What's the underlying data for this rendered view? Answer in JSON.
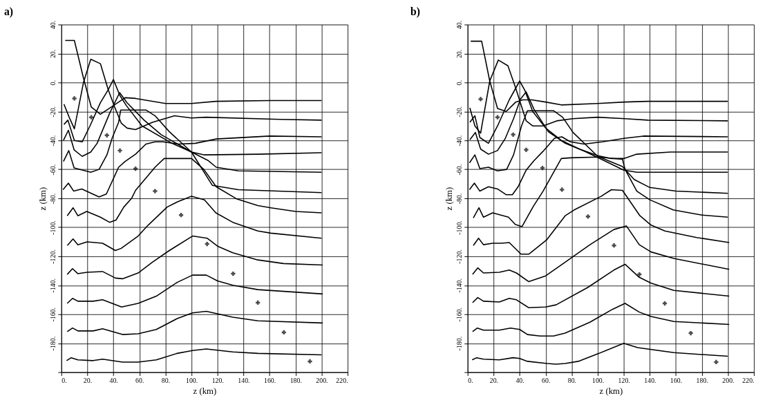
{
  "chart_data": [
    {
      "type": "line",
      "title": "a)",
      "xlabel": "z (km)",
      "ylabel": "z (km)",
      "xlim": [
        0,
        220
      ],
      "ylim": [
        -200,
        40
      ],
      "grid": true,
      "line_style": "solid",
      "xticks": [
        {
          "value": 0,
          "label": "0."
        },
        {
          "value": 20,
          "label": "20."
        },
        {
          "value": 40,
          "label": "40."
        },
        {
          "value": 60,
          "label": "60."
        },
        {
          "value": 80,
          "label": "80."
        },
        {
          "value": 100,
          "label": "100."
        },
        {
          "value": 120,
          "label": "120."
        },
        {
          "value": 140,
          "label": "140."
        },
        {
          "value": 160,
          "label": "160."
        },
        {
          "value": 180,
          "label": "180."
        },
        {
          "value": 200,
          "label": "200."
        },
        {
          "value": 220,
          "label": "220."
        }
      ],
      "yticks": [
        {
          "value": 40,
          "label": "40."
        },
        {
          "value": 20,
          "label": "20."
        },
        {
          "value": 0,
          "label": "0."
        },
        {
          "value": -20,
          "label": "-20."
        },
        {
          "value": -40,
          "label": "-40."
        },
        {
          "value": -60,
          "label": "-60."
        },
        {
          "value": -80,
          "label": "-80."
        },
        {
          "value": -100,
          "label": "-100."
        },
        {
          "value": -120,
          "label": "-120."
        },
        {
          "value": -140,
          "label": "-140."
        },
        {
          "value": -160,
          "label": "-160."
        },
        {
          "value": -180,
          "label": "-180."
        },
        {
          "value": -200,
          "label": null
        }
      ],
      "series": [
        {
          "type": "line",
          "color": "#000000",
          "x": [
            3,
            10,
            17,
            23,
            30,
            40,
            49,
            57,
            80,
            100,
            119,
            160,
            200
          ],
          "values": [
            29,
            29,
            3,
            -17,
            -22,
            -16,
            -10.5,
            -11,
            -14.5,
            -14.5,
            -13,
            -12.5,
            -12.5
          ]
        },
        {
          "type": "line",
          "color": "#000000",
          "x": [
            2,
            6,
            10,
            17,
            22.6,
            30,
            36,
            41,
            46,
            50.5,
            57,
            70,
            87,
            100,
            111,
            168,
            200
          ],
          "values": [
            -15,
            -24,
            -32,
            0,
            16,
            13,
            -5,
            -17,
            -28,
            -31.5,
            -32.5,
            -27.5,
            -23,
            -24.5,
            -24,
            -25.5,
            -26
          ]
        },
        {
          "type": "line",
          "color": "#000000",
          "x": [
            1.3,
            5.4,
            9.5,
            15.7,
            29,
            34.6,
            44,
            49,
            57,
            65,
            72,
            78,
            90,
            103,
            119,
            160,
            200
          ],
          "values": [
            -74,
            -69.5,
            -75,
            -73.5,
            -79,
            -77,
            -58.5,
            -54.5,
            -49.5,
            -42.5,
            -41,
            -41,
            -42.5,
            -42,
            -39,
            -37,
            -37.5
          ]
        },
        {
          "type": "line",
          "color": "#000000",
          "x": [
            2,
            5,
            10,
            16,
            22,
            30,
            36,
            40,
            45,
            50,
            62,
            85,
            100,
            110,
            152,
            200
          ],
          "values": [
            -29,
            -26,
            -40,
            -41,
            -30,
            -14,
            -5,
            2,
            -9,
            -16,
            -30,
            -42,
            -48,
            -50,
            -49.5,
            -48.5
          ]
        },
        {
          "type": "line",
          "color": "#000000",
          "x": [
            1.6,
            5.4,
            9.8,
            16,
            22.6,
            27.5,
            37,
            44.8,
            50.5,
            63.6,
            76.7,
            100,
            113,
            119,
            136,
            200
          ],
          "values": [
            -40,
            -33,
            -46.5,
            -51,
            -48,
            -42,
            -21.5,
            -7,
            -14,
            -26,
            -36,
            -48,
            -54,
            -58.5,
            -61,
            -62
          ]
        },
        {
          "type": "line",
          "color": "#000000",
          "x": [
            1.6,
            5.7,
            9.8,
            22.6,
            29,
            35,
            39,
            44,
            45.6,
            65,
            72,
            83,
            100,
            116,
            136,
            200
          ],
          "values": [
            -54.5,
            -47,
            -59,
            -62,
            -60,
            -50,
            -38.5,
            -27.5,
            -19,
            -19,
            -23,
            -34,
            -48,
            -71,
            -74,
            -76
          ]
        },
        {
          "type": "line",
          "color": "#000000",
          "x": [
            4.5,
            9,
            12.7,
            19.5,
            30,
            37,
            42,
            48,
            54,
            57,
            72,
            79,
            100,
            109.5,
            119,
            135,
            151,
            161,
            180,
            200
          ],
          "values": [
            -92,
            -86.5,
            -92,
            -89,
            -93,
            -96.5,
            -95,
            -86,
            -80,
            -74.5,
            -58.5,
            -52.5,
            -52.5,
            -60,
            -72,
            -80.5,
            -85,
            -86.5,
            -89,
            -90
          ]
        },
        {
          "type": "line",
          "color": "#000000",
          "x": [
            4.6,
            9,
            12.7,
            19.8,
            31.7,
            41.5,
            46,
            59,
            66.7,
            81.3,
            89,
            100,
            110,
            118.7,
            131.7,
            151,
            161,
            200
          ],
          "values": [
            -112.5,
            -108,
            -112,
            -110,
            -111,
            -116,
            -114.5,
            -106,
            -98.5,
            -86,
            -82.5,
            -78.5,
            -81,
            -90,
            -96.5,
            -102.5,
            -104,
            -107.5
          ]
        },
        {
          "type": "line",
          "color": "#000000",
          "x": [
            4.5,
            8.6,
            12.7,
            19.8,
            31.7,
            41.5,
            47,
            59,
            70,
            83,
            100.8,
            112,
            120,
            131.7,
            151,
            170.7,
            200.8
          ],
          "values": [
            -132.5,
            -128.5,
            -132,
            -131,
            -130.5,
            -135,
            -135.5,
            -131.5,
            -124,
            -116,
            -106,
            -107.5,
            -113,
            -117.5,
            -122.5,
            -125,
            -126
          ]
        },
        {
          "type": "line",
          "color": "#000000",
          "x": [
            4.5,
            8.6,
            12.7,
            24.4,
            31.7,
            46.3,
            59,
            73,
            89,
            100.8,
            111.4,
            120,
            131.7,
            151,
            200.8
          ],
          "values": [
            -152.5,
            -149,
            -151,
            -151,
            -150,
            -155,
            -152.5,
            -147.5,
            -138,
            -133,
            -133,
            -137,
            -140,
            -143,
            -146
          ]
        },
        {
          "type": "line",
          "color": "#000000",
          "x": [
            4.5,
            8.6,
            12.7,
            24.4,
            31.7,
            47,
            59,
            73,
            89,
            100.8,
            111.4,
            131.7,
            151,
            200.8
          ],
          "values": [
            -172,
            -169.5,
            -171.5,
            -171.5,
            -170,
            -174,
            -173.5,
            -170.5,
            -163,
            -159,
            -158,
            -162,
            -164.5,
            -166
          ]
        },
        {
          "type": "line",
          "color": "#000000",
          "x": [
            4,
            7.6,
            12.7,
            24.4,
            31.7,
            47,
            59,
            73,
            89,
            100.8,
            111.4,
            131.7,
            151,
            200
          ],
          "values": [
            -192,
            -190,
            -191.5,
            -192,
            -191,
            -193,
            -193,
            -191.5,
            -187,
            -185,
            -184,
            -186,
            -187,
            -188
          ]
        },
        {
          "type": "scatter",
          "marker": "cross",
          "color": "#000000",
          "x": [
            10,
            23,
            35,
            45,
            57,
            72,
            92,
            112,
            132,
            151,
            171,
            191
          ],
          "values": [
            -11,
            -24,
            -36.5,
            -47,
            -59.5,
            -75,
            -91.5,
            -111.5,
            -132,
            -152,
            -172.5,
            -192.5
          ]
        }
      ]
    },
    {
      "type": "line",
      "title": "b)",
      "xlabel": "z (km)",
      "ylabel": "z (km)",
      "xlim": [
        0,
        220
      ],
      "ylim": [
        -200,
        40
      ],
      "grid": true,
      "line_style": "solid",
      "xticks": [
        {
          "value": 0,
          "label": "0."
        },
        {
          "value": 20,
          "label": "20."
        },
        {
          "value": 40,
          "label": "40."
        },
        {
          "value": 60,
          "label": "60."
        },
        {
          "value": 80,
          "label": "80."
        },
        {
          "value": 100,
          "label": "100."
        },
        {
          "value": 120,
          "label": "120."
        },
        {
          "value": 140,
          "label": "140."
        },
        {
          "value": 160,
          "label": "160."
        },
        {
          "value": 180,
          "label": "180."
        },
        {
          "value": 200,
          "label": "200."
        },
        {
          "value": 220,
          "label": "220."
        }
      ],
      "yticks": [
        {
          "value": 40,
          "label": "40."
        },
        {
          "value": 20,
          "label": "20."
        },
        {
          "value": 0,
          "label": "0."
        },
        {
          "value": -20,
          "label": "-20."
        },
        {
          "value": -40,
          "label": "-40."
        },
        {
          "value": -60,
          "label": "-60."
        },
        {
          "value": -80,
          "label": "-80."
        },
        {
          "value": -100,
          "label": "-100."
        },
        {
          "value": -120,
          "label": "-120."
        },
        {
          "value": -140,
          "label": "-140."
        },
        {
          "value": -160,
          "label": "-160."
        },
        {
          "value": -180,
          "label": "-180."
        },
        {
          "value": -200,
          "label": null
        }
      ],
      "series": [
        {
          "type": "line",
          "color": "#000000",
          "x": [
            2.4,
            10.8,
            17,
            23,
            29.7,
            37,
            42.3,
            49.3,
            59.8,
            72,
            100,
            121,
            138.5,
            200
          ],
          "values": [
            28.5,
            28.5,
            1,
            -18,
            -20,
            -13.5,
            -12,
            -12,
            -13.5,
            -15.5,
            -14.5,
            -13.5,
            -13,
            -13
          ]
        },
        {
          "type": "line",
          "color": "#000000",
          "x": [
            1.7,
            5.6,
            10,
            17,
            23.6,
            31,
            37,
            45,
            50,
            58,
            68.5,
            80.8,
            100,
            121,
            138.5,
            200
          ],
          "values": [
            -17.5,
            -30,
            -35,
            1,
            15.5,
            11.5,
            -4,
            -26.5,
            -30,
            -30,
            -26.5,
            -25,
            -24,
            -25,
            -26,
            -26.5
          ]
        },
        {
          "type": "line",
          "color": "#000000",
          "x": [
            1.4,
            5.2,
            9.4,
            16,
            23,
            29.7,
            34.4,
            38.8,
            45,
            51,
            58,
            66.8,
            72.4,
            79,
            89.5,
            103.5,
            121,
            135,
            200
          ],
          "values": [
            -74,
            -69.5,
            -75,
            -72,
            -73.5,
            -77.5,
            -77.5,
            -72,
            -60.5,
            -54,
            -47.5,
            -38.5,
            -37.5,
            -41,
            -42.5,
            -41,
            -38.5,
            -37,
            -37.5
          ]
        },
        {
          "type": "line",
          "color": "#000000",
          "x": [
            1.7,
            5.6,
            9.4,
            16,
            23,
            32,
            40,
            44,
            50,
            60,
            72,
            86,
            100,
            110.5,
            120,
            130,
            156,
            200
          ],
          "values": [
            -27.5,
            -23,
            -38,
            -42,
            -30,
            -12,
            1,
            -5.5,
            -20,
            -31.5,
            -40,
            -46,
            -50.5,
            -52.5,
            -52.5,
            -49.5,
            -48,
            -48
          ]
        },
        {
          "type": "line",
          "color": "#000000",
          "x": [
            1.7,
            6,
            10,
            16,
            23,
            29,
            35.3,
            40.6,
            45,
            51,
            62,
            75,
            90,
            105,
            120,
            130,
            200
          ],
          "values": [
            -39.5,
            -34.5,
            -46,
            -49.5,
            -47,
            -38.5,
            -25,
            -11.5,
            -6.5,
            -18.5,
            -34,
            -42,
            -47.5,
            -54,
            -60.5,
            -62,
            -62
          ]
        },
        {
          "type": "line",
          "color": "#000000",
          "x": [
            1.4,
            5.6,
            9.4,
            16,
            23,
            30,
            35.3,
            41.4,
            46,
            66,
            73,
            81,
            100,
            119,
            128,
            140,
            160,
            200
          ],
          "values": [
            -55.5,
            -50,
            -59.5,
            -58.5,
            -61,
            -60,
            -50,
            -30,
            -19.5,
            -19.5,
            -24,
            -34.5,
            -51,
            -58,
            -67,
            -72.5,
            -75,
            -76.5
          ]
        },
        {
          "type": "line",
          "color": "#000000",
          "x": [
            4.4,
            8.7,
            12.2,
            19.2,
            31.4,
            36.6,
            41.8,
            50.5,
            58,
            72,
            79,
            100,
            119,
            121,
            130,
            140,
            158,
            180,
            200
          ],
          "values": [
            -93.5,
            -86.5,
            -93,
            -90,
            -93,
            -98,
            -99.5,
            -85.5,
            -75,
            -52.5,
            -52,
            -51.5,
            -53,
            -60,
            -75,
            -81,
            -88,
            -91.5,
            -93
          ]
        },
        {
          "type": "line",
          "color": "#000000",
          "x": [
            4.4,
            8.4,
            12.2,
            19.2,
            26,
            32,
            41,
            47,
            60.9,
            75,
            81.9,
            102.8,
            110.5,
            119,
            132.4,
            141,
            151.6,
            176,
            201
          ],
          "values": [
            -112.5,
            -107.5,
            -112,
            -111,
            -111,
            -110.5,
            -118.5,
            -118.5,
            -108.5,
            -92,
            -88,
            -78.5,
            -74,
            -74.5,
            -92,
            -98.5,
            -102.5,
            -107,
            -110.5
          ]
        },
        {
          "type": "line",
          "color": "#000000",
          "x": [
            3.8,
            7.8,
            12.2,
            24.4,
            32,
            37.5,
            47,
            60,
            75,
            94,
            112.4,
            122,
            131.9,
            141,
            158.5,
            201
          ],
          "values": [
            -132.5,
            -128,
            -131.5,
            -131,
            -129.5,
            -131.5,
            -137.5,
            -133.5,
            -124,
            -112,
            -101.5,
            -99,
            -112,
            -117,
            -121.5,
            -129
          ]
        },
        {
          "type": "line",
          "color": "#000000",
          "x": [
            3.8,
            7.8,
            12.2,
            24.4,
            32,
            37.5,
            47,
            60,
            68,
            92.3,
            112.4,
            121,
            131.9,
            141,
            158.5,
            201
          ],
          "values": [
            -152,
            -148.5,
            -151,
            -151.5,
            -149,
            -150,
            -155.5,
            -155,
            -153.5,
            -141.5,
            -129.5,
            -125.5,
            -134.5,
            -138.5,
            -143.5,
            -147.5
          ]
        },
        {
          "type": "line",
          "color": "#000000",
          "x": [
            3.8,
            7.5,
            12.2,
            24.4,
            33,
            40,
            46,
            55.7,
            66,
            75,
            94,
            111.5,
            121,
            131.9,
            141,
            158.5,
            201
          ],
          "values": [
            -172,
            -169.5,
            -171,
            -171,
            -169.5,
            -170.5,
            -174,
            -175,
            -175,
            -173,
            -165.5,
            -156.5,
            -152.5,
            -158.5,
            -161.5,
            -165,
            -167
          ]
        },
        {
          "type": "line",
          "color": "#000000",
          "x": [
            3.5,
            7,
            12.2,
            24.4,
            35,
            40,
            46,
            61,
            68,
            75,
            85,
            101,
            120,
            130.6,
            158.5,
            200
          ],
          "values": [
            -191.5,
            -190,
            -191,
            -191.5,
            -190,
            -190.5,
            -192.5,
            -194,
            -194.5,
            -194,
            -192.5,
            -187,
            -180,
            -183,
            -186.5,
            -189
          ]
        },
        {
          "type": "scatter",
          "marker": "cross",
          "color": "#000000",
          "x": [
            10,
            23,
            35,
            45,
            57.5,
            72.5,
            92.5,
            112.5,
            132,
            151.5,
            171.5,
            191
          ],
          "values": [
            -11.5,
            -24,
            -36,
            -46.5,
            -59,
            -74,
            -92.5,
            -112.5,
            -132.5,
            -152.5,
            -173,
            -193
          ]
        }
      ]
    }
  ]
}
